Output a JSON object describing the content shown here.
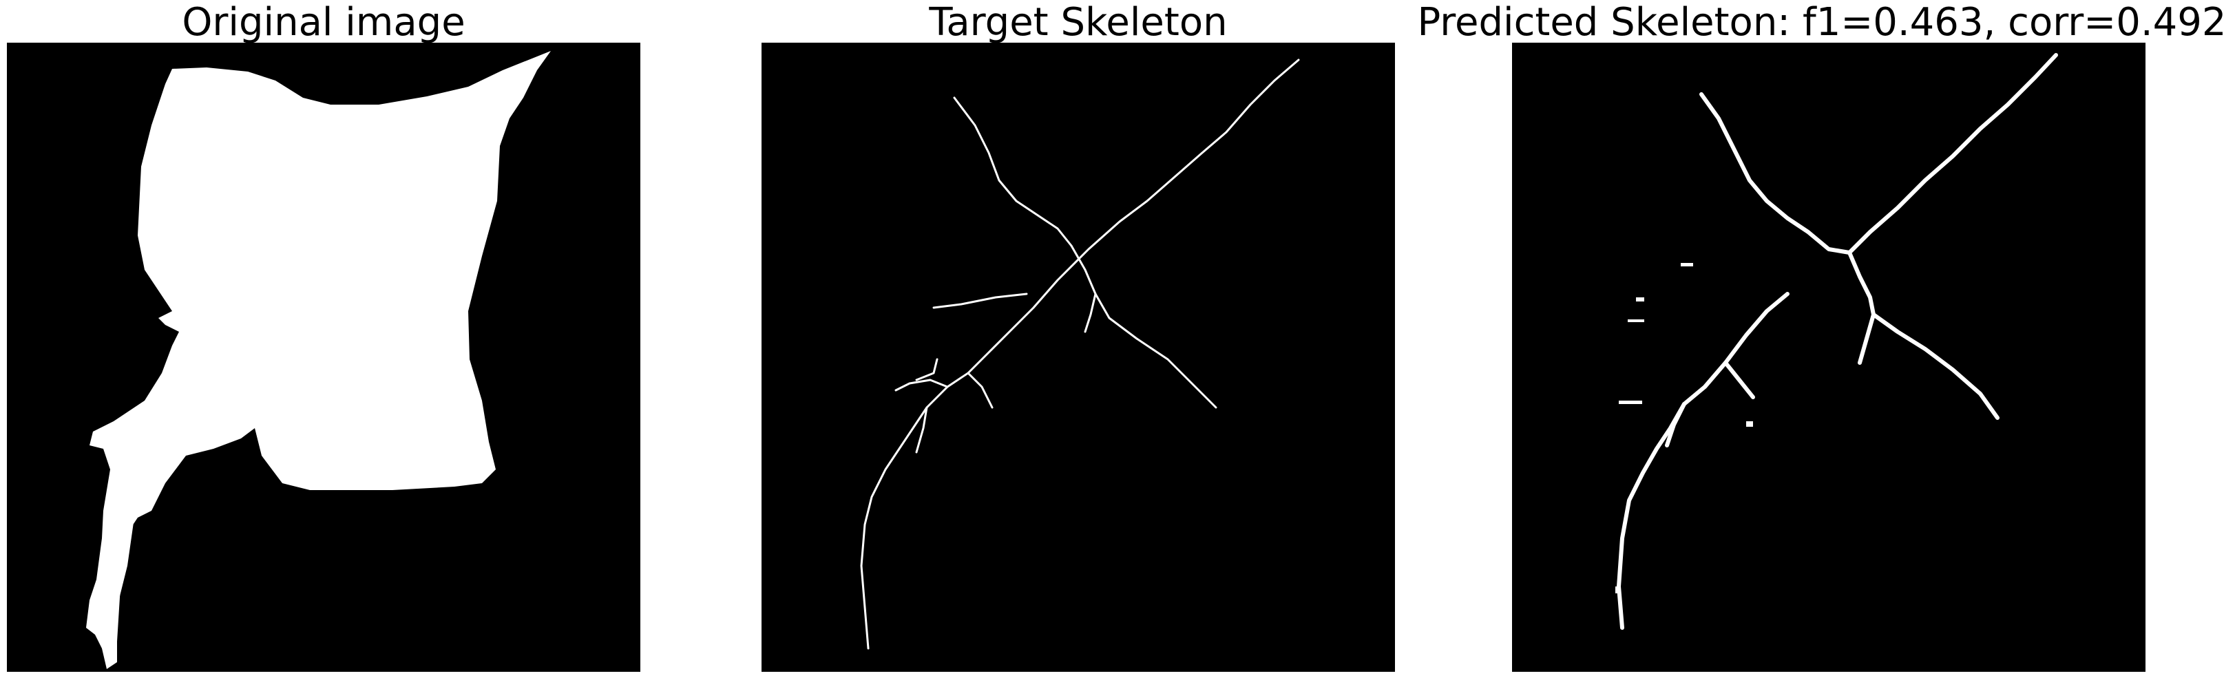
{
  "panels": [
    {
      "title": "Original image"
    },
    {
      "title": "Target Skeleton"
    },
    {
      "title": "Predicted Skeleton: f1=0.463, corr=0.492"
    }
  ],
  "colors": {
    "background": "#000000",
    "foreground": "#ffffff"
  }
}
